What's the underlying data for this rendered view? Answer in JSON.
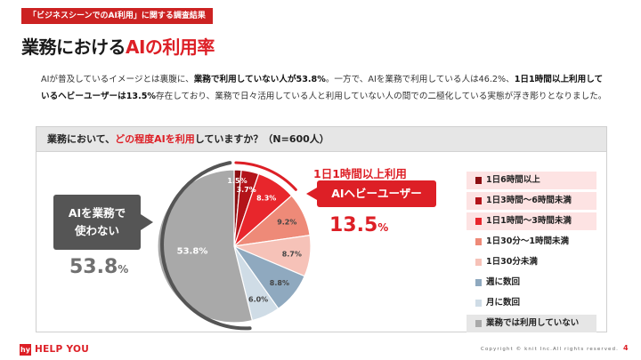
{
  "header": {
    "tag": "「ビジネスシーンでのAI利用」に関する調査結果",
    "title_prefix": "業務における",
    "title_accent": "AIの利用率"
  },
  "lead": {
    "t1": "AIが普及しているイメージとは裏腹に、",
    "b1": "業務で利用していない人が53.8%",
    "t2": "。一方で、AIを業務で利用している人は46.2%、",
    "b2": "1日1時間以上利用しているヘビーユーザーは13.5%",
    "t3": "存在しており、業務で日々活用している人と利用していない人の間での二極化している実態が浮き彫りとなりました。"
  },
  "panel": {
    "question_prefix": "業務において、",
    "question_highlight": "どの程度AIを利用",
    "question_suffix": "していますか？（N=600人）"
  },
  "callouts": {
    "left_line1": "AIを業務で",
    "left_line2": "使わない",
    "left_value": "53.8",
    "left_unit": "%",
    "right_top": "1日1時間以上利用",
    "right_label": "AIヘビーユーザー",
    "right_value": "13.5",
    "right_unit": "%"
  },
  "footer": {
    "logo_mark": "hy",
    "logo_text": "HELP YOU",
    "copyright": "Copyright © knit Inc.All rights reserved.",
    "page": "4"
  },
  "colors": {
    "accent": "#dd1f26",
    "dark_gray": "#555555"
  },
  "chart_data": {
    "type": "pie",
    "title": "業務において、どの程度AIを利用していますか？（N=600人）",
    "categories": [
      "1日6時間以上",
      "1日3時間〜6時間未満",
      "1日1時間〜3時間未満",
      "1日30分〜1時間未満",
      "1日30分未満",
      "週に数回",
      "月に数回",
      "業務では利用していない"
    ],
    "values": [
      1.5,
      3.7,
      8.3,
      9.2,
      8.7,
      8.8,
      6.0,
      53.8
    ],
    "labels": [
      "1.5%",
      "3.7%",
      "8.3%",
      "9.2%",
      "8.7%",
      "8.8%",
      "6.0%",
      "53.8%"
    ],
    "colors": [
      "#8c0f12",
      "#b3141a",
      "#e8262c",
      "#ee8a78",
      "#f6c2b8",
      "#8fa9bf",
      "#cfdce6",
      "#a9a9a9"
    ],
    "legend_position": "right",
    "heavy_user_group": [
      "1日6時間以上",
      "1日3時間〜6時間未満",
      "1日1時間〜3時間未満"
    ]
  }
}
